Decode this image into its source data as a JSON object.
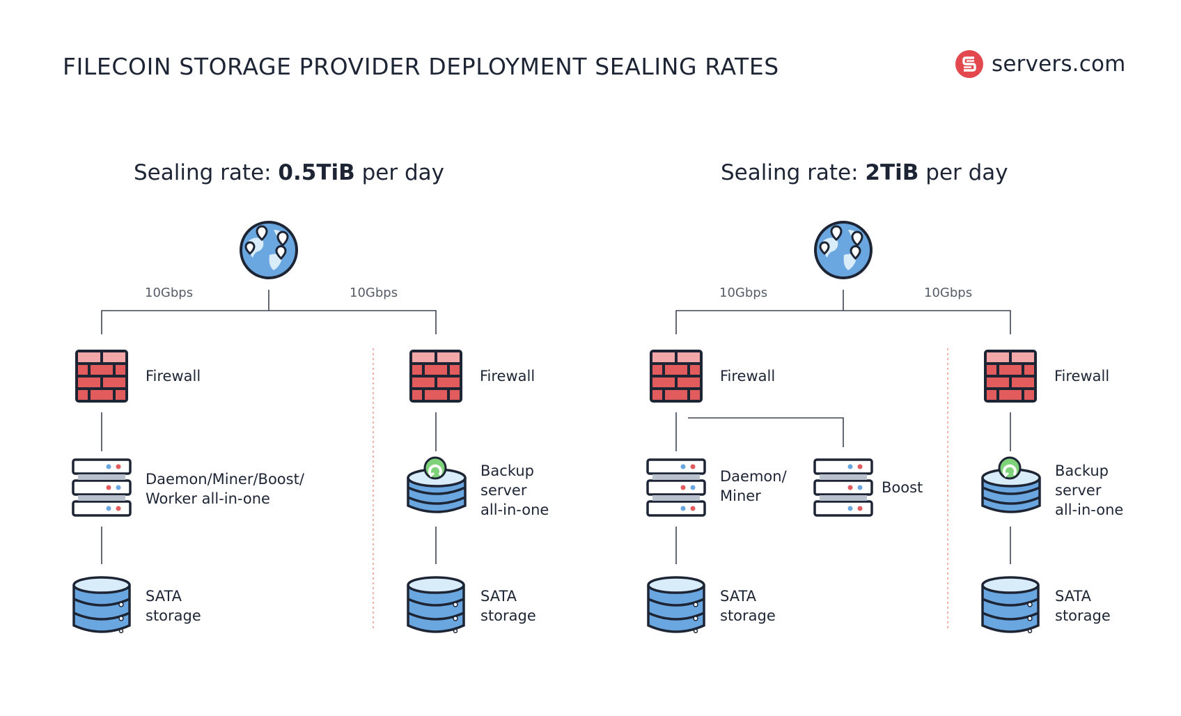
{
  "title": "FILECOIN STORAGE PROVIDER DEPLOYMENT SEALING RATES",
  "brand": {
    "name": "servers.com",
    "color": "#e2484d"
  },
  "colors": {
    "firewall": "#e25b5d",
    "storage": "#6aa7e0",
    "accent": "#7ed27a",
    "divider": "#f08f7e",
    "line": "#3d4450"
  },
  "panels": [
    {
      "heading_prefix": "Sealing rate: ",
      "heading_value": "0.5TiB",
      "heading_suffix": " per day",
      "link_left": "10Gbps",
      "link_right": "10Gbps",
      "left": {
        "firewall": "Firewall",
        "server_line1": "Daemon/Miner/Boost/",
        "server_line2": "Worker all-in-one",
        "storage_line1": "SATA",
        "storage_line2": "storage"
      },
      "right": {
        "firewall": "Firewall",
        "backup_line1": "Backup",
        "backup_line2": "server",
        "backup_line3": "all-in-one",
        "storage_line1": "SATA",
        "storage_line2": "storage"
      }
    },
    {
      "heading_prefix": "Sealing rate: ",
      "heading_value": "2TiB",
      "heading_suffix": " per day",
      "link_left": "10Gbps",
      "link_right": "10Gbps",
      "left": {
        "firewall": "Firewall",
        "server_line1": "Daemon/",
        "server_line2": "Miner",
        "boost": "Boost",
        "storage_line1": "SATA",
        "storage_line2": "storage"
      },
      "right": {
        "firewall": "Firewall",
        "backup_line1": "Backup",
        "backup_line2": "server",
        "backup_line3": "all-in-one",
        "storage_line1": "SATA",
        "storage_line2": "storage"
      }
    }
  ]
}
